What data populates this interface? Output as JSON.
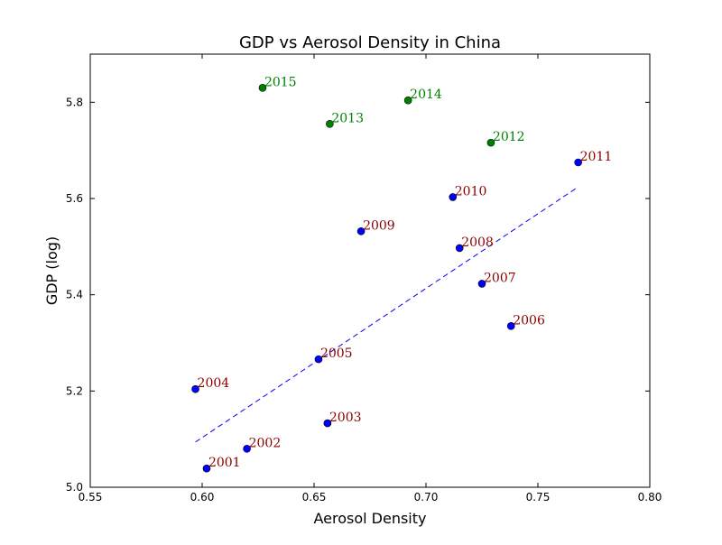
{
  "chart_data": {
    "type": "scatter",
    "title": "GDP vs Aerosol Density in China",
    "xlabel": "Aerosol Density",
    "ylabel": "GDP (log)",
    "xlim": [
      0.55,
      0.8
    ],
    "ylim": [
      5.0,
      5.9
    ],
    "xticks": [
      "0.55",
      "0.60",
      "0.65",
      "0.70",
      "0.75",
      "0.80"
    ],
    "yticks": [
      "5.0",
      "5.2",
      "5.4",
      "5.6",
      "5.8"
    ],
    "grid": false,
    "colors": {
      "early_points": "#0000ff",
      "late_points": "#008000",
      "early_labels": "#8b0000",
      "late_labels": "#008000",
      "trend_line": "#0000ff"
    },
    "series": [
      {
        "group": "early",
        "points": [
          {
            "label": "2001",
            "x": 0.602,
            "y": 5.039
          },
          {
            "label": "2002",
            "x": 0.62,
            "y": 5.08
          },
          {
            "label": "2003",
            "x": 0.656,
            "y": 5.133
          },
          {
            "label": "2004",
            "x": 0.597,
            "y": 5.204
          },
          {
            "label": "2005",
            "x": 0.652,
            "y": 5.266
          },
          {
            "label": "2006",
            "x": 0.738,
            "y": 5.335
          },
          {
            "label": "2007",
            "x": 0.725,
            "y": 5.423
          },
          {
            "label": "2008",
            "x": 0.715,
            "y": 5.497
          },
          {
            "label": "2009",
            "x": 0.671,
            "y": 5.532
          },
          {
            "label": "2010",
            "x": 0.712,
            "y": 5.603
          },
          {
            "label": "2011",
            "x": 0.768,
            "y": 5.675
          }
        ]
      },
      {
        "group": "late",
        "points": [
          {
            "label": "2012",
            "x": 0.729,
            "y": 5.716
          },
          {
            "label": "2013",
            "x": 0.657,
            "y": 5.755
          },
          {
            "label": "2014",
            "x": 0.692,
            "y": 5.804
          },
          {
            "label": "2015",
            "x": 0.627,
            "y": 5.83
          }
        ]
      }
    ],
    "trend_line": {
      "style": "dashed",
      "x": [
        0.597,
        0.768
      ],
      "y": [
        5.094,
        5.624
      ]
    }
  }
}
